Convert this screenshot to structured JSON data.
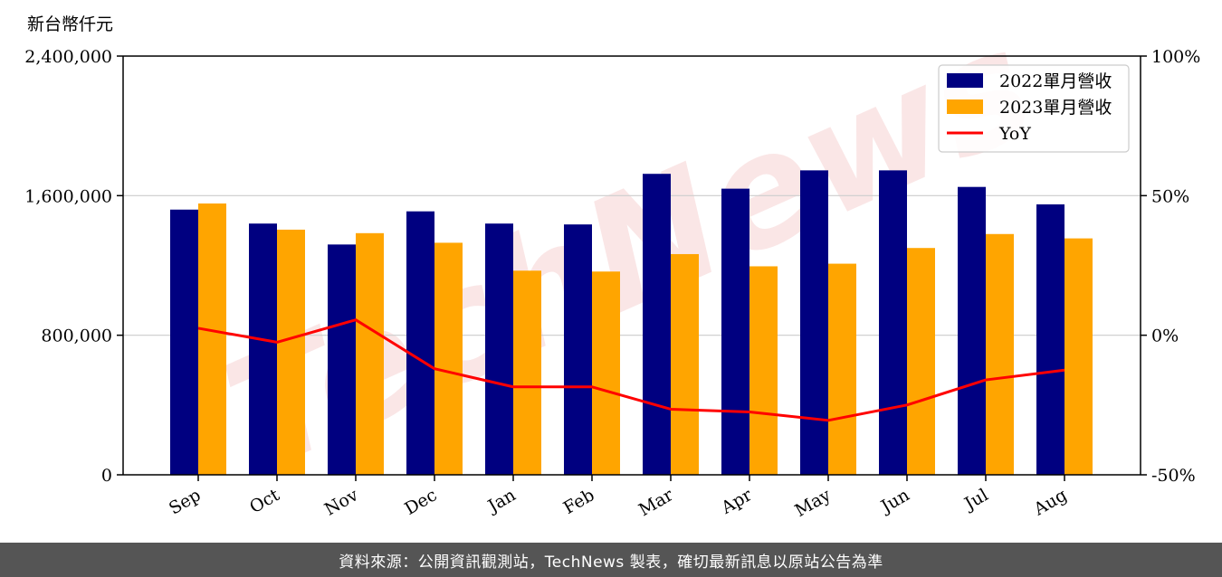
{
  "chart_data": {
    "type": "bar",
    "ylabel": "新台幣仟元",
    "categories": [
      "Sep",
      "Oct",
      "Nov",
      "Dec",
      "Jan",
      "Feb",
      "Mar",
      "Apr",
      "May",
      "Jun",
      "Jul",
      "Aug"
    ],
    "series": [
      {
        "name": "2022單月營收",
        "type": "bar",
        "axis": "left",
        "color": "#000080",
        "values": [
          1520000,
          1440000,
          1320000,
          1510000,
          1440000,
          1435000,
          1725000,
          1640000,
          1745000,
          1745000,
          1650000,
          1550000
        ]
      },
      {
        "name": "2023單月營收",
        "type": "bar",
        "axis": "left",
        "color": "#FFA500",
        "values": [
          1555000,
          1405000,
          1385000,
          1330000,
          1170000,
          1165000,
          1265000,
          1195000,
          1210000,
          1300000,
          1380000,
          1355000
        ]
      },
      {
        "name": "YoY",
        "type": "line",
        "axis": "right",
        "color": "#FF0000",
        "values": [
          2.5,
          -2.5,
          5.5,
          -12,
          -18.5,
          -18.5,
          -26.5,
          -27.5,
          -30.5,
          -25,
          -16,
          -12.5
        ]
      }
    ],
    "ylim": [
      0,
      2400000
    ],
    "yticks": [
      0,
      800000,
      1600000,
      2400000
    ],
    "ytick_labels": [
      "0",
      "800,000",
      "1,600,000",
      "2,400,000"
    ],
    "y2lim": [
      -50,
      100
    ],
    "y2ticks": [
      -50,
      0,
      50,
      100
    ],
    "y2tick_labels": [
      "-50%",
      "0%",
      "50%",
      "100%"
    ],
    "grid": "horizontal",
    "legend_position": "top-right",
    "watermark": "TechNews"
  },
  "footer": {
    "source": "資料來源：公開資訊觀測站，TechNews 製表，確切最新訊息以原站公告為準"
  }
}
